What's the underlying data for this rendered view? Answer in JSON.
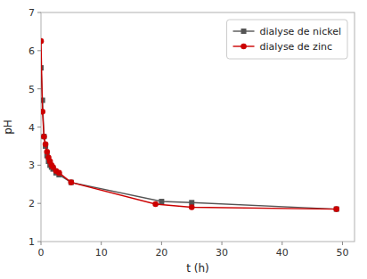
{
  "chart_data": {
    "type": "line",
    "xlabel": "t (h)",
    "ylabel": "pH",
    "series": [
      {
        "name": "dialyse de nickel",
        "color": "#555555",
        "marker": "square",
        "x": [
          0,
          0.25,
          0.5,
          0.75,
          1.0,
          1.25,
          1.5,
          1.75,
          2.0,
          2.5,
          3.0,
          5.0,
          20.0,
          25.0,
          49.0
        ],
        "values": [
          5.55,
          4.7,
          3.75,
          3.5,
          3.25,
          3.1,
          3.0,
          2.95,
          2.9,
          2.8,
          2.75,
          2.55,
          2.05,
          2.02,
          1.85
        ]
      },
      {
        "name": "dialyse de zinc",
        "color": "#cc0000",
        "marker": "circle",
        "x": [
          0,
          0.25,
          0.5,
          0.75,
          1.0,
          1.25,
          1.5,
          1.75,
          2.0,
          2.5,
          3.0,
          5.0,
          19.0,
          25.0,
          49.0
        ],
        "values": [
          6.25,
          4.4,
          3.75,
          3.55,
          3.35,
          3.2,
          3.1,
          3.0,
          2.95,
          2.85,
          2.8,
          2.55,
          1.98,
          1.9,
          1.85
        ]
      }
    ],
    "xlim": [
      0,
      52
    ],
    "ylim": [
      1,
      7
    ],
    "xticks": [
      0,
      10,
      20,
      30,
      40,
      50
    ],
    "yticks": [
      1,
      2,
      3,
      4,
      5,
      6,
      7
    ],
    "grid": false,
    "legend": "upper right"
  }
}
